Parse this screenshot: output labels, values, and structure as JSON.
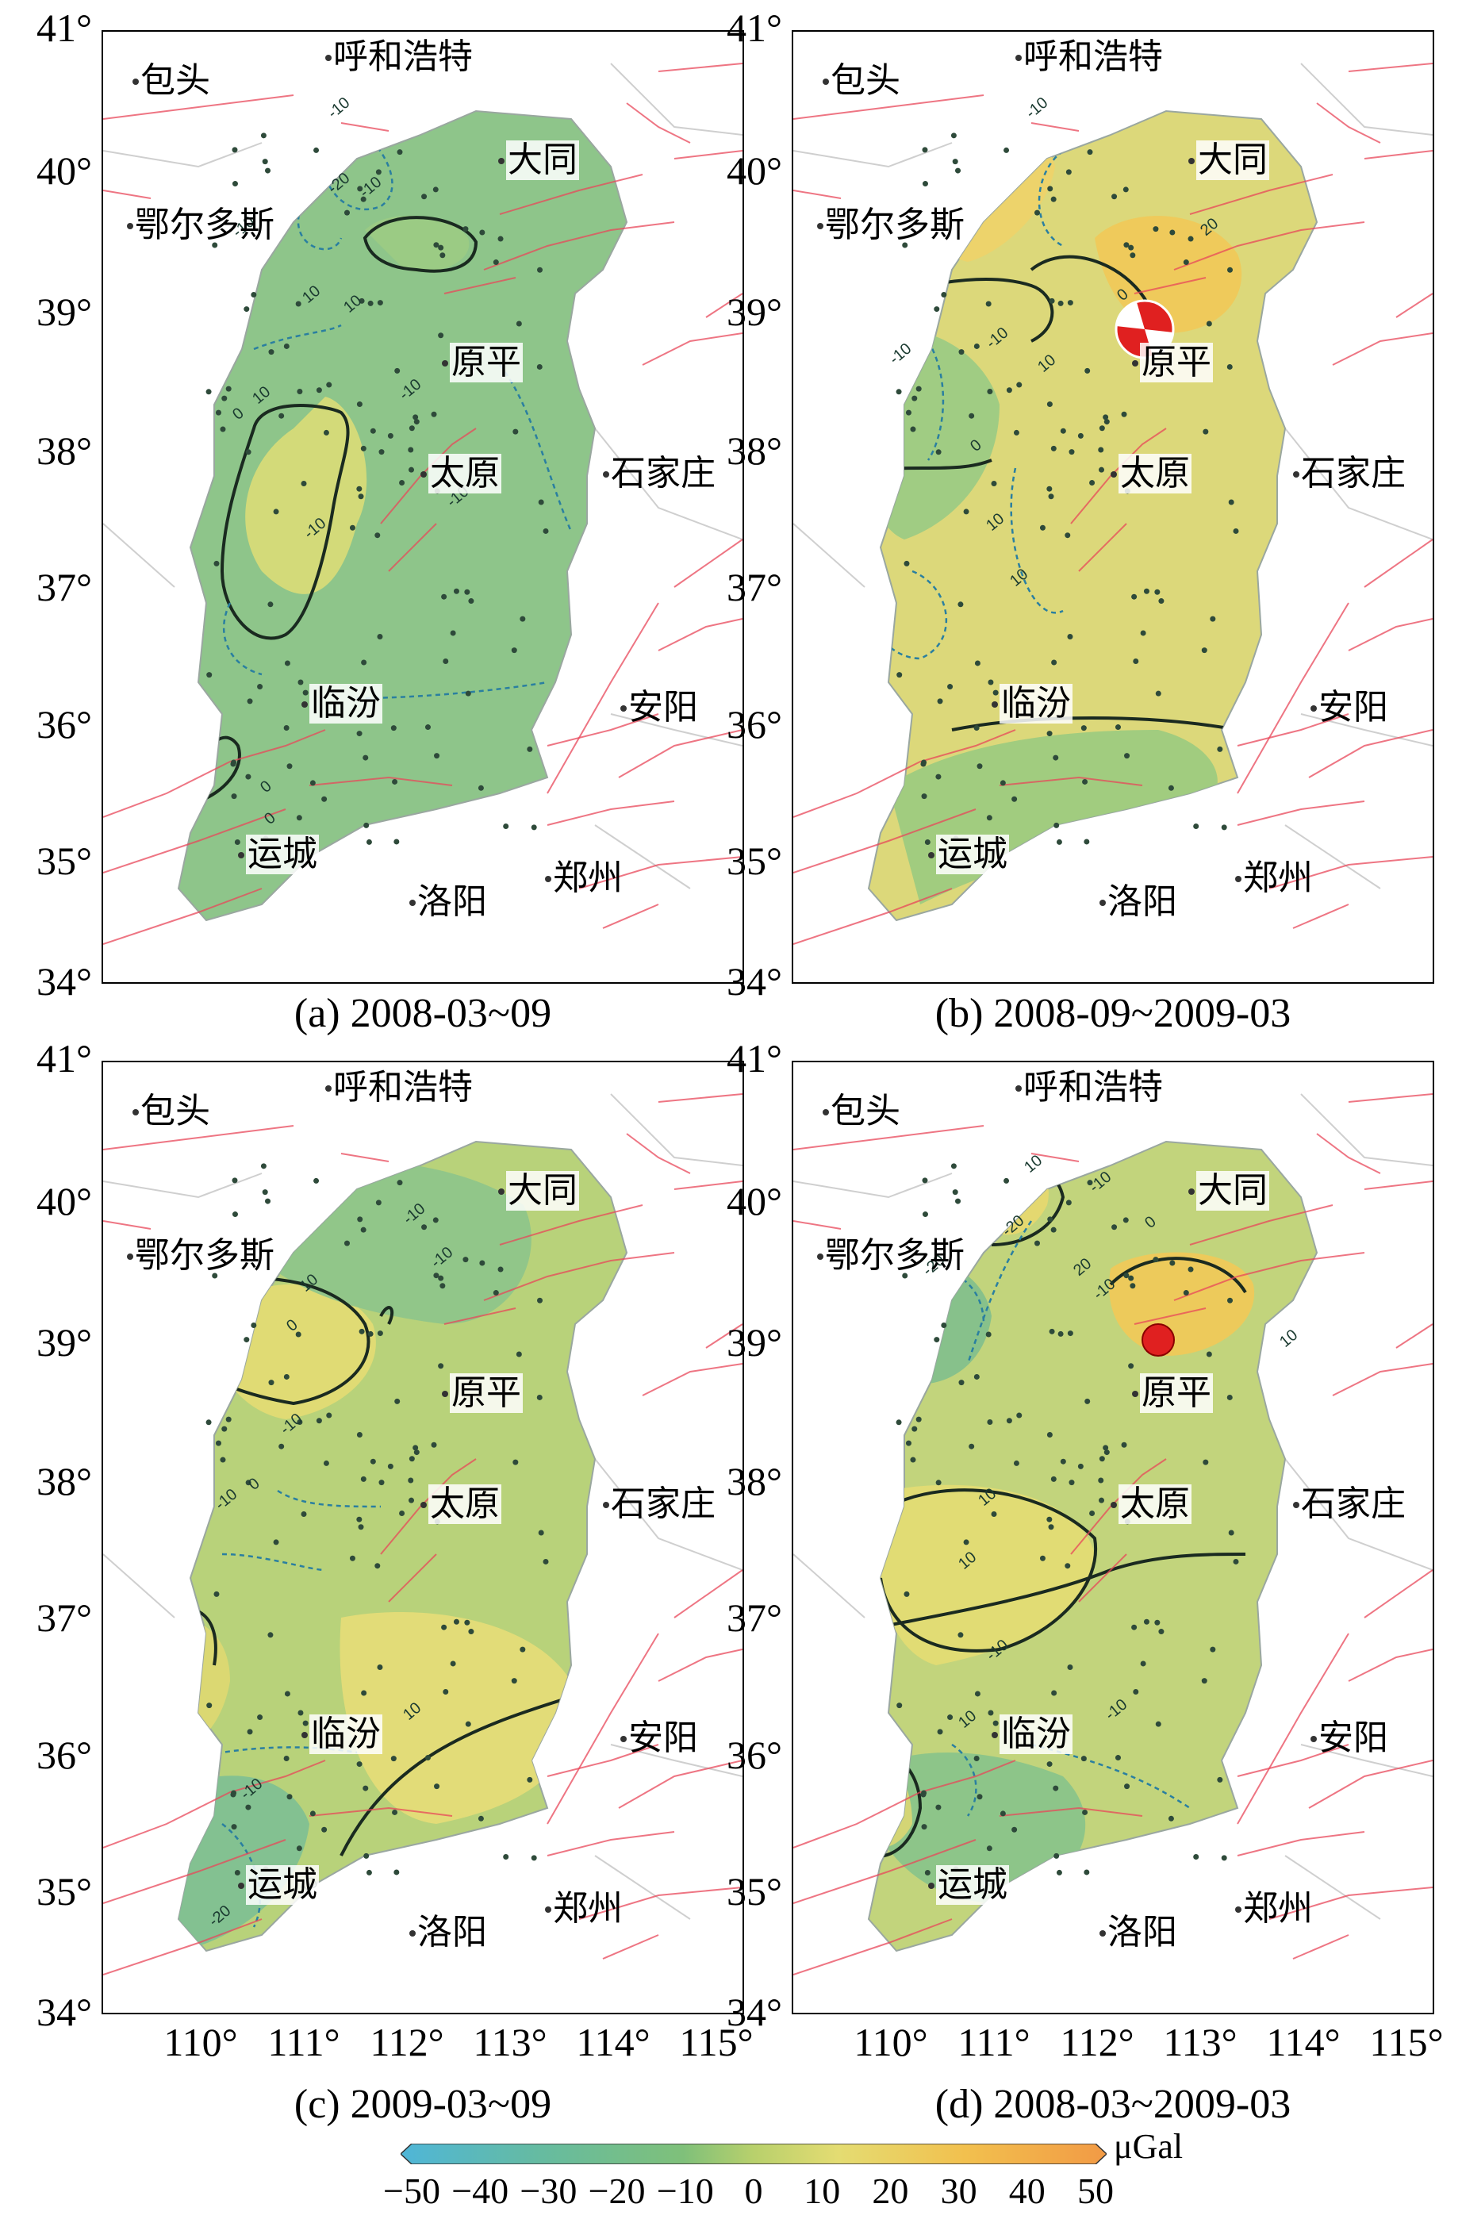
{
  "panels": [
    {
      "id": "a",
      "caption": "(a) 2008-03~09"
    },
    {
      "id": "b",
      "caption": "(b) 2008-09~2009-03"
    },
    {
      "id": "c",
      "caption": "(c) 2009-03~09"
    },
    {
      "id": "d",
      "caption": "(d) 2008-03~2009-03"
    }
  ],
  "lat_ticks": [
    "41°",
    "40°",
    "39°",
    "38°",
    "37°",
    "36°",
    "35°",
    "34°"
  ],
  "lon_ticks": [
    "110°",
    "111°",
    "112°",
    "113°",
    "114°",
    "115°"
  ],
  "cities": {
    "baotou": "包头",
    "hohhot": "呼和浩特",
    "ordos": "鄂尔多斯",
    "datong": "大同",
    "yuanping": "原平",
    "taiyuan": "太原",
    "shijiazhuang": "石家庄",
    "linfen": "临汾",
    "anyang": "安阳",
    "yuncheng": "运城",
    "luoyang": "洛阳",
    "zhengzhou": "郑州"
  },
  "colorbar": {
    "ticks": [
      "−50",
      "−40",
      "−30",
      "−20",
      "−10",
      "0",
      "10",
      "20",
      "30",
      "40",
      "50"
    ],
    "unit": "μGal",
    "colors": [
      "#4fb6d8",
      "#5fb9a8",
      "#6fbd85",
      "#8cc46c",
      "#b5d06a",
      "#dcdc72",
      "#efd55a",
      "#f2b34a",
      "#f29a45"
    ]
  },
  "contour_labels": {
    "a": [
      "-10",
      "-20",
      "-10",
      "-10",
      "10",
      "10",
      "0",
      "10",
      "-10",
      "-10",
      "-10",
      "0",
      "0"
    ],
    "b": [
      "-10",
      "20",
      "-10",
      "-10",
      "0",
      "10",
      "10",
      "10",
      "0"
    ],
    "c": [
      "10",
      "0",
      "-10",
      "-10",
      "-10",
      "-10",
      "10",
      "-10",
      "10",
      "-20",
      "0"
    ],
    "d": [
      "10",
      "-10",
      "-20",
      "-10",
      "-20",
      "20",
      "10",
      "10",
      "0",
      "10",
      "-10",
      "10",
      "-10"
    ]
  }
}
